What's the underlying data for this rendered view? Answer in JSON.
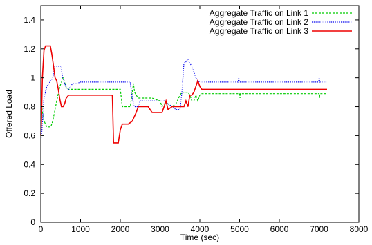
{
  "chart_data": {
    "type": "line",
    "title": "",
    "xlabel": "Time (sec)",
    "ylabel": "Offered Load",
    "xlim": [
      0,
      8000
    ],
    "ylim": [
      0,
      1.5
    ],
    "xticks": [
      0,
      1000,
      2000,
      3000,
      4000,
      5000,
      6000,
      7000,
      8000
    ],
    "xtick_labels": [
      "0",
      "1000",
      "2000",
      "3000",
      "4000",
      "5000",
      "6000",
      "7000",
      "8000"
    ],
    "yticks": [
      0,
      0.2,
      0.4,
      0.6,
      0.8,
      1.0,
      1.2,
      1.4
    ],
    "ytick_labels": [
      "0",
      "0.2",
      "0.4",
      "0.6",
      "0.8",
      "1",
      "1.2",
      "1.4"
    ],
    "legend_position": "top-right",
    "grid": false,
    "series": [
      {
        "name": "Aggregate Traffic on Link 1",
        "color": "#00cc00",
        "style": "dashed",
        "x": [
          0,
          30,
          60,
          100,
          150,
          200,
          250,
          300,
          400,
          480,
          560,
          600,
          640,
          700,
          800,
          1000,
          1500,
          2000,
          2050,
          2200,
          2250,
          2300,
          2330,
          2360,
          2400,
          2450,
          2500,
          2600,
          2800,
          3000,
          3050,
          3100,
          3200,
          3300,
          3400,
          3500,
          3550,
          3600,
          3650,
          3700,
          3750,
          3800,
          3850,
          3900,
          3950,
          4000,
          4050,
          4100,
          4500,
          5000,
          5010,
          5020,
          5500,
          6000,
          6500,
          7000,
          7010,
          7020,
          7200
        ],
        "y": [
          0.6,
          0.79,
          0.72,
          0.69,
          0.66,
          0.66,
          0.66,
          0.7,
          0.84,
          0.94,
          1.0,
          0.97,
          0.93,
          0.92,
          0.92,
          0.92,
          0.92,
          0.92,
          0.8,
          0.8,
          0.8,
          0.9,
          0.96,
          0.9,
          0.88,
          0.86,
          0.86,
          0.86,
          0.86,
          0.84,
          0.8,
          0.82,
          0.82,
          0.8,
          0.82,
          0.88,
          0.9,
          0.9,
          0.9,
          0.9,
          0.88,
          0.84,
          0.84,
          0.88,
          0.84,
          0.88,
          0.89,
          0.89,
          0.89,
          0.89,
          0.86,
          0.89,
          0.89,
          0.89,
          0.89,
          0.89,
          0.86,
          0.89,
          0.89
        ]
      },
      {
        "name": "Aggregate Traffic on Link 2",
        "color": "#0000ee",
        "style": "dotted",
        "x": [
          0,
          20,
          40,
          60,
          80,
          100,
          150,
          200,
          250,
          300,
          350,
          400,
          500,
          550,
          600,
          650,
          700,
          750,
          800,
          900,
          1000,
          1500,
          2000,
          2200,
          2250,
          2300,
          2350,
          2400,
          2450,
          2500,
          2600,
          2800,
          3000,
          3100,
          3200,
          3300,
          3400,
          3500,
          3550,
          3600,
          3650,
          3700,
          3750,
          3800,
          3850,
          3900,
          3950,
          4000,
          4500,
          4960,
          4980,
          5000,
          5020,
          5500,
          6000,
          6500,
          6980,
          7000,
          7020,
          7200
        ],
        "y": [
          0.56,
          0.6,
          0.68,
          0.78,
          0.86,
          0.88,
          0.94,
          0.96,
          0.98,
          1.0,
          1.08,
          1.08,
          1.08,
          1.0,
          0.96,
          0.93,
          0.92,
          0.94,
          0.96,
          0.96,
          0.97,
          0.97,
          0.97,
          0.97,
          0.97,
          0.86,
          0.8,
          0.8,
          0.8,
          0.84,
          0.84,
          0.84,
          0.84,
          0.84,
          0.82,
          0.8,
          0.78,
          0.78,
          0.9,
          1.1,
          1.11,
          1.13,
          1.1,
          1.08,
          1.04,
          1.0,
          0.98,
          0.97,
          0.97,
          0.97,
          1.0,
          0.97,
          0.97,
          0.97,
          0.97,
          0.97,
          0.97,
          1.0,
          0.97,
          0.97
        ]
      },
      {
        "name": "Aggregate Traffic on Link 3",
        "color": "#ee0000",
        "style": "solid",
        "x": [
          0,
          15,
          40,
          80,
          120,
          160,
          200,
          240,
          280,
          320,
          360,
          400,
          440,
          480,
          520,
          560,
          600,
          640,
          700,
          800,
          900,
          1000,
          1500,
          1800,
          1830,
          1900,
          1950,
          2000,
          2050,
          2200,
          2300,
          2400,
          2450,
          2500,
          2550,
          2600,
          2700,
          2800,
          2850,
          2900,
          3000,
          3050,
          3100,
          3150,
          3200,
          3300,
          3400,
          3450,
          3500,
          3550,
          3600,
          3650,
          3700,
          3750,
          3800,
          3850,
          3900,
          3950,
          4000,
          4050,
          4500,
          5000,
          5500,
          6000,
          6500,
          7000,
          7200
        ],
        "y": [
          0.6,
          0.7,
          1.0,
          1.19,
          1.22,
          1.22,
          1.22,
          1.22,
          1.16,
          1.08,
          1.0,
          0.98,
          0.92,
          0.85,
          0.8,
          0.8,
          0.82,
          0.86,
          0.88,
          0.88,
          0.88,
          0.88,
          0.88,
          0.88,
          0.55,
          0.55,
          0.55,
          0.64,
          0.68,
          0.68,
          0.7,
          0.76,
          0.8,
          0.8,
          0.8,
          0.8,
          0.8,
          0.76,
          0.76,
          0.76,
          0.76,
          0.76,
          0.8,
          0.84,
          0.78,
          0.8,
          0.8,
          0.8,
          0.8,
          0.8,
          0.8,
          0.84,
          0.8,
          0.88,
          0.88,
          0.9,
          0.94,
          0.98,
          0.94,
          0.92,
          0.92,
          0.92,
          0.92,
          0.92,
          0.92,
          0.92,
          0.92
        ]
      }
    ]
  }
}
